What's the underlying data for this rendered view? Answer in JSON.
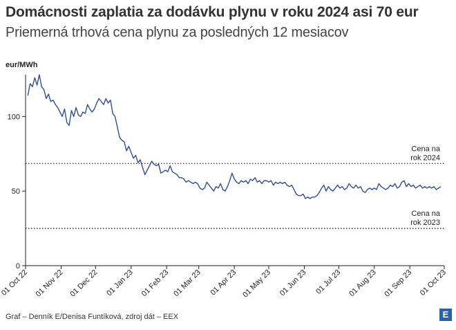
{
  "header": {
    "title": "Domácnosti zaplatia za dodávku plynu v roku 2024 asi 70 eur",
    "subtitle": "Priemerná trhová cena plynu za posledných 12 mesiacov"
  },
  "footer": {
    "credit": "Graf – Denník E/Denisa Funtíková, zdroj dát – EEX",
    "logo_letter": "E"
  },
  "colors": {
    "line": "#2f4f8f",
    "axis": "#222222",
    "text": "#333333",
    "logo": "#2a62a8"
  },
  "chart_data": {
    "type": "line",
    "title": "Domácnosti zaplatia za dodávku plynu v roku 2024 asi 70 eur",
    "subtitle": "Priemerná trhová cena plynu za posledných 12 mesiacov",
    "ylabel": "eur/MWh",
    "xlabel": "",
    "ylim": [
      0,
      128
    ],
    "yticks": [
      0,
      50,
      100
    ],
    "xlim": [
      "2022-10-01",
      "2023-10-01"
    ],
    "xticks": [
      "01 Oct 22",
      "01 Nov 22",
      "01 Dec 22",
      "01 Jan 23",
      "01 Feb 23",
      "01 Mar 23",
      "01 Apr 23",
      "01 May 23",
      "01 Jun 23",
      "01 Jul 23",
      "01 Aug 23",
      "01 Sep 23",
      "01 Oct 23"
    ],
    "grid": false,
    "series": [
      {
        "values": [
          {
            "x": "2022-10-03",
            "y": 114
          },
          {
            "x": "2022-10-05",
            "y": 122
          },
          {
            "x": "2022-10-07",
            "y": 120
          },
          {
            "x": "2022-10-09",
            "y": 126
          },
          {
            "x": "2022-10-11",
            "y": 121
          },
          {
            "x": "2022-10-13",
            "y": 128
          },
          {
            "x": "2022-10-15",
            "y": 120
          },
          {
            "x": "2022-10-17",
            "y": 118
          },
          {
            "x": "2022-10-19",
            "y": 112
          },
          {
            "x": "2022-10-21",
            "y": 115
          },
          {
            "x": "2022-10-23",
            "y": 110
          },
          {
            "x": "2022-10-25",
            "y": 111
          },
          {
            "x": "2022-10-27",
            "y": 108
          },
          {
            "x": "2022-10-29",
            "y": 106
          },
          {
            "x": "2022-10-31",
            "y": 103
          },
          {
            "x": "2022-11-02",
            "y": 100
          },
          {
            "x": "2022-11-04",
            "y": 105
          },
          {
            "x": "2022-11-06",
            "y": 96
          },
          {
            "x": "2022-11-08",
            "y": 94
          },
          {
            "x": "2022-11-10",
            "y": 104
          },
          {
            "x": "2022-11-12",
            "y": 100
          },
          {
            "x": "2022-11-14",
            "y": 106
          },
          {
            "x": "2022-11-16",
            "y": 101
          },
          {
            "x": "2022-11-18",
            "y": 100
          },
          {
            "x": "2022-11-20",
            "y": 103
          },
          {
            "x": "2022-11-22",
            "y": 102
          },
          {
            "x": "2022-11-24",
            "y": 108
          },
          {
            "x": "2022-11-26",
            "y": 105
          },
          {
            "x": "2022-11-28",
            "y": 103
          },
          {
            "x": "2022-11-30",
            "y": 105
          },
          {
            "x": "2022-12-02",
            "y": 109
          },
          {
            "x": "2022-12-04",
            "y": 112
          },
          {
            "x": "2022-12-06",
            "y": 110
          },
          {
            "x": "2022-12-08",
            "y": 108
          },
          {
            "x": "2022-12-10",
            "y": 112
          },
          {
            "x": "2022-12-12",
            "y": 109
          },
          {
            "x": "2022-12-14",
            "y": 111
          },
          {
            "x": "2022-12-16",
            "y": 102
          },
          {
            "x": "2022-12-18",
            "y": 100
          },
          {
            "x": "2022-12-20",
            "y": 93
          },
          {
            "x": "2022-12-22",
            "y": 86
          },
          {
            "x": "2022-12-24",
            "y": 84
          },
          {
            "x": "2022-12-26",
            "y": 83
          },
          {
            "x": "2022-12-28",
            "y": 77
          },
          {
            "x": "2022-12-30",
            "y": 80
          },
          {
            "x": "2023-01-01",
            "y": 76
          },
          {
            "x": "2023-01-03",
            "y": 72
          },
          {
            "x": "2023-01-05",
            "y": 74
          },
          {
            "x": "2023-01-07",
            "y": 69
          },
          {
            "x": "2023-01-09",
            "y": 71
          },
          {
            "x": "2023-01-11",
            "y": 66
          },
          {
            "x": "2023-01-13",
            "y": 61
          },
          {
            "x": "2023-01-15",
            "y": 64
          },
          {
            "x": "2023-01-17",
            "y": 67
          },
          {
            "x": "2023-01-19",
            "y": 70
          },
          {
            "x": "2023-01-21",
            "y": 68
          },
          {
            "x": "2023-01-23",
            "y": 67
          },
          {
            "x": "2023-01-25",
            "y": 68
          },
          {
            "x": "2023-01-27",
            "y": 62
          },
          {
            "x": "2023-01-29",
            "y": 63
          },
          {
            "x": "2023-01-31",
            "y": 64
          },
          {
            "x": "2023-02-02",
            "y": 63
          },
          {
            "x": "2023-02-04",
            "y": 67
          },
          {
            "x": "2023-02-06",
            "y": 63
          },
          {
            "x": "2023-02-08",
            "y": 62
          },
          {
            "x": "2023-02-10",
            "y": 61
          },
          {
            "x": "2023-02-12",
            "y": 59
          },
          {
            "x": "2023-02-14",
            "y": 59
          },
          {
            "x": "2023-02-16",
            "y": 58
          },
          {
            "x": "2023-02-18",
            "y": 56
          },
          {
            "x": "2023-02-20",
            "y": 57
          },
          {
            "x": "2023-02-22",
            "y": 56
          },
          {
            "x": "2023-02-24",
            "y": 55
          },
          {
            "x": "2023-02-26",
            "y": 56
          },
          {
            "x": "2023-02-28",
            "y": 55
          },
          {
            "x": "2023-03-02",
            "y": 52
          },
          {
            "x": "2023-03-04",
            "y": 51
          },
          {
            "x": "2023-03-06",
            "y": 52
          },
          {
            "x": "2023-03-08",
            "y": 56
          },
          {
            "x": "2023-03-10",
            "y": 54
          },
          {
            "x": "2023-03-12",
            "y": 52
          },
          {
            "x": "2023-03-14",
            "y": 50
          },
          {
            "x": "2023-03-16",
            "y": 53
          },
          {
            "x": "2023-03-18",
            "y": 52
          },
          {
            "x": "2023-03-20",
            "y": 55
          },
          {
            "x": "2023-03-22",
            "y": 51
          },
          {
            "x": "2023-03-24",
            "y": 50
          },
          {
            "x": "2023-03-26",
            "y": 53
          },
          {
            "x": "2023-03-28",
            "y": 57
          },
          {
            "x": "2023-03-30",
            "y": 62
          },
          {
            "x": "2023-04-01",
            "y": 58
          },
          {
            "x": "2023-04-03",
            "y": 56
          },
          {
            "x": "2023-04-05",
            "y": 55
          },
          {
            "x": "2023-04-07",
            "y": 57
          },
          {
            "x": "2023-04-09",
            "y": 56
          },
          {
            "x": "2023-04-11",
            "y": 57
          },
          {
            "x": "2023-04-13",
            "y": 55
          },
          {
            "x": "2023-04-15",
            "y": 58
          },
          {
            "x": "2023-04-17",
            "y": 57
          },
          {
            "x": "2023-04-19",
            "y": 59
          },
          {
            "x": "2023-04-21",
            "y": 56
          },
          {
            "x": "2023-04-23",
            "y": 57
          },
          {
            "x": "2023-04-25",
            "y": 55
          },
          {
            "x": "2023-04-27",
            "y": 57
          },
          {
            "x": "2023-04-29",
            "y": 57
          },
          {
            "x": "2023-05-01",
            "y": 56
          },
          {
            "x": "2023-05-03",
            "y": 57
          },
          {
            "x": "2023-05-05",
            "y": 54
          },
          {
            "x": "2023-05-07",
            "y": 56
          },
          {
            "x": "2023-05-09",
            "y": 55
          },
          {
            "x": "2023-05-11",
            "y": 56
          },
          {
            "x": "2023-05-13",
            "y": 55
          },
          {
            "x": "2023-05-15",
            "y": 56
          },
          {
            "x": "2023-05-17",
            "y": 54
          },
          {
            "x": "2023-05-19",
            "y": 53
          },
          {
            "x": "2023-05-21",
            "y": 54
          },
          {
            "x": "2023-05-23",
            "y": 51
          },
          {
            "x": "2023-05-25",
            "y": 48
          },
          {
            "x": "2023-05-27",
            "y": 47
          },
          {
            "x": "2023-05-29",
            "y": 47
          },
          {
            "x": "2023-05-31",
            "y": 48
          },
          {
            "x": "2023-06-02",
            "y": 45
          },
          {
            "x": "2023-06-04",
            "y": 46
          },
          {
            "x": "2023-06-06",
            "y": 45
          },
          {
            "x": "2023-06-08",
            "y": 46
          },
          {
            "x": "2023-06-10",
            "y": 46
          },
          {
            "x": "2023-06-12",
            "y": 47
          },
          {
            "x": "2023-06-14",
            "y": 49
          },
          {
            "x": "2023-06-16",
            "y": 52
          },
          {
            "x": "2023-06-18",
            "y": 54
          },
          {
            "x": "2023-06-20",
            "y": 50
          },
          {
            "x": "2023-06-22",
            "y": 53
          },
          {
            "x": "2023-06-24",
            "y": 51
          },
          {
            "x": "2023-06-26",
            "y": 50
          },
          {
            "x": "2023-06-28",
            "y": 52
          },
          {
            "x": "2023-06-30",
            "y": 54
          },
          {
            "x": "2023-07-02",
            "y": 52
          },
          {
            "x": "2023-07-04",
            "y": 53
          },
          {
            "x": "2023-07-06",
            "y": 51
          },
          {
            "x": "2023-07-08",
            "y": 52
          },
          {
            "x": "2023-07-10",
            "y": 55
          },
          {
            "x": "2023-07-12",
            "y": 53
          },
          {
            "x": "2023-07-14",
            "y": 52
          },
          {
            "x": "2023-07-16",
            "y": 54
          },
          {
            "x": "2023-07-18",
            "y": 52
          },
          {
            "x": "2023-07-20",
            "y": 53
          },
          {
            "x": "2023-07-22",
            "y": 50
          },
          {
            "x": "2023-07-24",
            "y": 49
          },
          {
            "x": "2023-07-26",
            "y": 51
          },
          {
            "x": "2023-07-28",
            "y": 52
          },
          {
            "x": "2023-07-30",
            "y": 51
          },
          {
            "x": "2023-08-01",
            "y": 52
          },
          {
            "x": "2023-08-03",
            "y": 51
          },
          {
            "x": "2023-08-05",
            "y": 55
          },
          {
            "x": "2023-08-07",
            "y": 53
          },
          {
            "x": "2023-08-09",
            "y": 52
          },
          {
            "x": "2023-08-11",
            "y": 51
          },
          {
            "x": "2023-08-13",
            "y": 52
          },
          {
            "x": "2023-08-15",
            "y": 54
          },
          {
            "x": "2023-08-17",
            "y": 53
          },
          {
            "x": "2023-08-19",
            "y": 55
          },
          {
            "x": "2023-08-21",
            "y": 52
          },
          {
            "x": "2023-08-23",
            "y": 53
          },
          {
            "x": "2023-08-25",
            "y": 56
          },
          {
            "x": "2023-08-27",
            "y": 57
          },
          {
            "x": "2023-08-29",
            "y": 53
          },
          {
            "x": "2023-08-31",
            "y": 55
          },
          {
            "x": "2023-09-02",
            "y": 53
          },
          {
            "x": "2023-09-04",
            "y": 54
          },
          {
            "x": "2023-09-06",
            "y": 52
          },
          {
            "x": "2023-09-08",
            "y": 53
          },
          {
            "x": "2023-09-10",
            "y": 54
          },
          {
            "x": "2023-09-12",
            "y": 52
          },
          {
            "x": "2023-09-14",
            "y": 53
          },
          {
            "x": "2023-09-16",
            "y": 52
          },
          {
            "x": "2023-09-18",
            "y": 53
          },
          {
            "x": "2023-09-20",
            "y": 52
          },
          {
            "x": "2023-09-22",
            "y": 53
          },
          {
            "x": "2023-09-24",
            "y": 51
          },
          {
            "x": "2023-09-26",
            "y": 52
          },
          {
            "x": "2023-09-28",
            "y": 53
          }
        ]
      }
    ],
    "reference_lines": [
      {
        "y": 68.5,
        "label_lines": [
          "Cena na",
          "rok 2024"
        ]
      },
      {
        "y": 25,
        "label_lines": [
          "Cena na",
          "rok 2023"
        ]
      }
    ]
  }
}
